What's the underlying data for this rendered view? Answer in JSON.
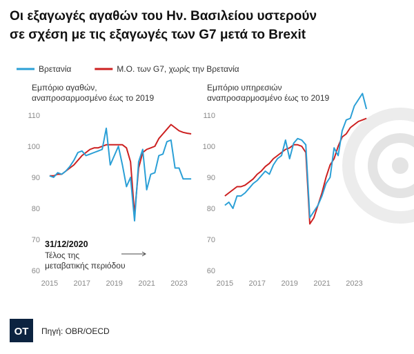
{
  "title": [
    "Οι εξαγωγές αγαθών του Ην. Βασιλείου υστερούν",
    "σε σχέση με τις εξαγωγές των G7 μετά το Brexit"
  ],
  "logo": "OT",
  "source": "Πηγή: OBR/OECD",
  "chart_data": [
    {
      "type": "line",
      "subtitle": [
        "Εμπόριο αγαθών,",
        "αναπροσαρμοσμένο έως το 2019"
      ],
      "annotation": [
        "31/12/2020",
        "Τέλος της",
        "μεταβατικής περιόδου"
      ],
      "x": [
        2015,
        2015.25,
        2015.5,
        2015.75,
        2016,
        2016.25,
        2016.5,
        2016.75,
        2017,
        2017.25,
        2017.5,
        2017.75,
        2018,
        2018.25,
        2018.5,
        2018.75,
        2019,
        2019.25,
        2019.5,
        2019.75,
        2020,
        2020.25,
        2020.5,
        2020.75,
        2021,
        2021.25,
        2021.5,
        2021.75,
        2022,
        2022.25,
        2022.5,
        2022.75,
        2023,
        2023.25,
        2023.5,
        2023.75
      ],
      "series": [
        {
          "name": "Βρετανία",
          "color": "#2a9fd6",
          "values": [
            90.5,
            90,
            91.5,
            91,
            92,
            93.5,
            95.5,
            98,
            98.5,
            97,
            97.5,
            98,
            98.5,
            99,
            105.8,
            94,
            97,
            100,
            94,
            87,
            90,
            76,
            95,
            99,
            86,
            91,
            91.5,
            97,
            97.5,
            101.5,
            102,
            93,
            93,
            89.5,
            89.5,
            89.5
          ]
        },
        {
          "name": "Μ.Ο. των G7, χωρίς την Βρετανία",
          "color": "#cc1f1f",
          "values": [
            90.5,
            90.5,
            91,
            91,
            92,
            93,
            94,
            95.5,
            97,
            98,
            99,
            99.5,
            99.5,
            100,
            100.5,
            100.5,
            100.5,
            100.5,
            100.5,
            99.5,
            95,
            78,
            93,
            98,
            99,
            99.5,
            100,
            102.5,
            104,
            105.5,
            107,
            106,
            105,
            104.5,
            104.2,
            104
          ]
        }
      ],
      "xlim": [
        2014.75,
        2024
      ],
      "xticks": [
        2015,
        2017,
        2019,
        2021,
        2023
      ],
      "ylim": [
        58,
        118
      ],
      "yticks": [
        60,
        70,
        80,
        90,
        100,
        110
      ]
    },
    {
      "type": "line",
      "subtitle": [
        "Εμπόριο υπηρεσιών",
        "αναπροσαρμοσμένο έως το 2019"
      ],
      "x": [
        2015,
        2015.25,
        2015.5,
        2015.75,
        2016,
        2016.25,
        2016.5,
        2016.75,
        2017,
        2017.25,
        2017.5,
        2017.75,
        2018,
        2018.25,
        2018.5,
        2018.75,
        2019,
        2019.25,
        2019.5,
        2019.75,
        2020,
        2020.25,
        2020.5,
        2020.75,
        2021,
        2021.25,
        2021.5,
        2021.75,
        2022,
        2022.25,
        2022.5,
        2022.75,
        2023,
        2023.25,
        2023.5,
        2023.75
      ],
      "series": [
        {
          "name": "Βρετανία",
          "color": "#2a9fd6",
          "values": [
            81,
            82,
            80,
            84,
            84,
            85,
            86.5,
            88,
            89,
            90.5,
            92,
            91,
            94,
            96,
            97,
            102,
            96,
            101,
            102.5,
            102,
            100.5,
            77,
            79,
            81,
            84,
            88,
            90,
            99.5,
            97,
            105,
            108.5,
            109,
            113,
            115,
            117,
            112
          ]
        },
        {
          "name": "Μ.Ο. των G7, χωρίς την Βρετανία",
          "color": "#cc1f1f",
          "values": [
            84,
            85,
            86,
            87,
            87,
            87.5,
            88.5,
            89.5,
            91,
            92,
            93.5,
            94.5,
            96,
            97,
            98,
            99,
            99.5,
            100.5,
            100.5,
            100,
            98,
            75,
            77,
            81,
            85,
            90,
            94,
            96,
            100,
            103,
            104,
            106,
            107,
            108,
            108.5,
            109
          ]
        }
      ],
      "xlim": [
        2014.75,
        2024
      ],
      "xticks": [
        2015,
        2017,
        2019,
        2021,
        2023
      ],
      "ylim": [
        58,
        118
      ],
      "yticks": [
        60,
        70,
        80,
        90,
        100,
        110
      ]
    }
  ]
}
